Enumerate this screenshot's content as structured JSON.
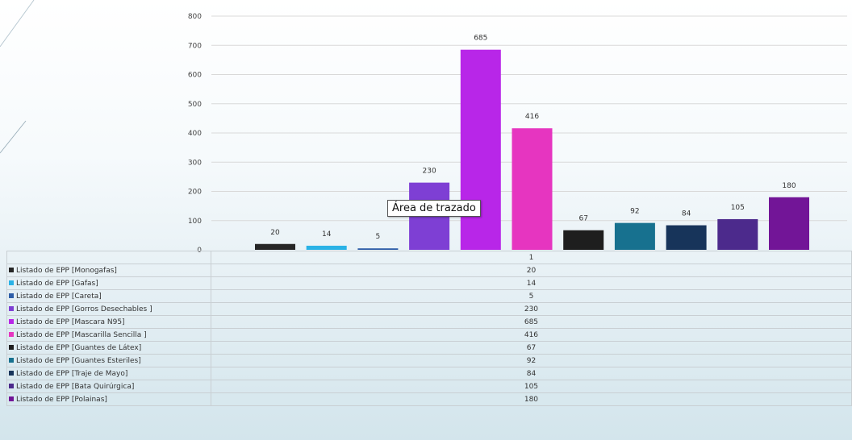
{
  "chart_data": {
    "type": "bar",
    "categories": [
      "1"
    ],
    "ylim": [
      0,
      800
    ],
    "yticks": [
      0,
      100,
      200,
      300,
      400,
      500,
      600,
      700,
      800
    ],
    "grid": true,
    "legend": "data-table",
    "series": [
      {
        "name": "Listado de EPP  [Monogafas]",
        "values": [
          20
        ],
        "color": "#262626"
      },
      {
        "name": "Listado de EPP  [Gafas]",
        "values": [
          14
        ],
        "color": "#2ab2e6"
      },
      {
        "name": "Listado de EPP  [Careta]",
        "values": [
          5
        ],
        "color": "#2e5ea8"
      },
      {
        "name": "Listado de EPP  [Gorros Desechables ]",
        "values": [
          230
        ],
        "color": "#7e3fd4"
      },
      {
        "name": "Listado de EPP  [Mascara N95]",
        "values": [
          685
        ],
        "color": "#b826e8"
      },
      {
        "name": "Listado de EPP  [Mascarilla Sencilla ]",
        "values": [
          416
        ],
        "color": "#e635c0"
      },
      {
        "name": "Listado de EPP  [Guantes de Látex]",
        "values": [
          67
        ],
        "color": "#1e1e1e"
      },
      {
        "name": "Listado de EPP  [Guantes Esteriles]",
        "values": [
          92
        ],
        "color": "#17718f"
      },
      {
        "name": "Listado de EPP  [Traje de Mayo]",
        "values": [
          84
        ],
        "color": "#17345a"
      },
      {
        "name": "Listado de EPP  [Bata Quirúrgica]",
        "values": [
          105
        ],
        "color": "#4c2a8c"
      },
      {
        "name": "Listado de EPP  [Polainas]",
        "values": [
          180
        ],
        "color": "#721597"
      }
    ]
  },
  "tooltip": {
    "text": "Área de trazado"
  }
}
